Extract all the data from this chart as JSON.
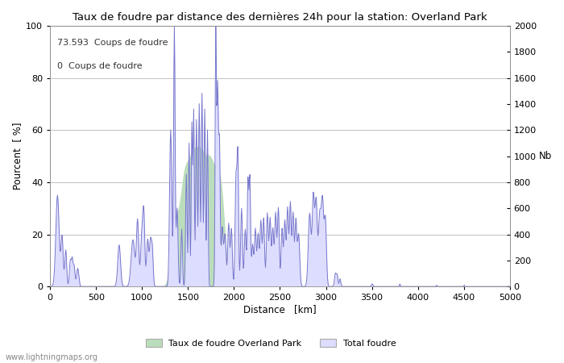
{
  "title": "Taux de foudre par distance des dernières 24h pour la station: Overland Park",
  "xlabel": "Distance   [km]",
  "ylabel_left": "Pourcent  [ %]",
  "ylabel_right": "Nb",
  "annotation_line1": "73.593  Coups de foudre",
  "annotation_line2": "0  Coups de foudre",
  "watermark": "www.lightningmaps.org",
  "legend_green": "Taux de foudre Overland Park",
  "legend_blue": "Total foudre",
  "xlim": [
    0,
    5000
  ],
  "ylim_left": [
    0,
    100
  ],
  "ylim_right": [
    0,
    2000
  ],
  "xticks": [
    0,
    500,
    1000,
    1500,
    2000,
    2500,
    3000,
    3500,
    4000,
    4500,
    5000
  ],
  "yticks_left": [
    0,
    20,
    40,
    60,
    80,
    100
  ],
  "yticks_right": [
    0,
    200,
    400,
    600,
    800,
    1000,
    1200,
    1400,
    1600,
    1800,
    2000
  ],
  "bg_color": "#ffffff",
  "line_color": "#7777cc",
  "fill_blue_color": "#ddddff",
  "fill_green_color": "#bbddbb",
  "grid_color": "#aaaaaa"
}
